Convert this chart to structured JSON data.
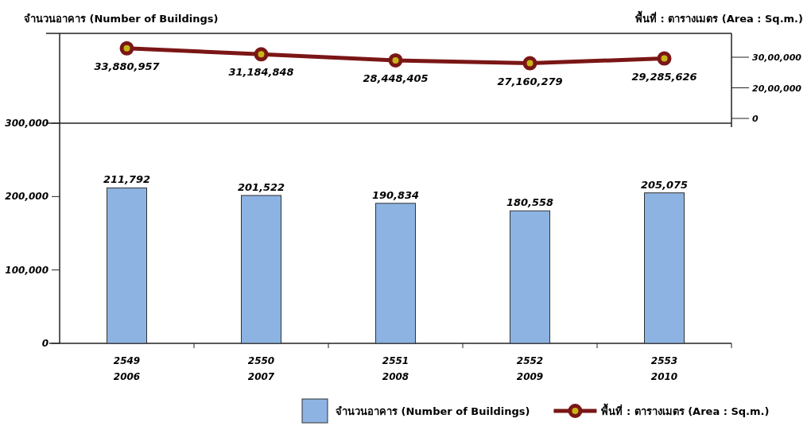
{
  "chart_data": [
    {
      "type": "line",
      "annotations": [
        "พื้นที่ : ตารางเมตร (Area : Sq.m.)",
        "30,00,000",
        "20,00,000",
        "0"
      ],
      "categories": [
        null,
        null,
        null,
        null,
        null
      ],
      "series": [
        {
          "name": "พื้นที่ : ตารางเมตร (Area : Sq.m.)",
          "color": "#7b1616",
          "values": [
            33880957,
            31184848,
            28448405,
            27160279,
            29285626
          ],
          "value_labels": [
            "33,880,957",
            "31,184,848",
            "28,448,405",
            "27,160,279",
            "29,285,626"
          ]
        }
      ],
      "marker": "circle",
      "tick_labels": false,
      "legend": "bottom"
    },
    {
      "type": "bar",
      "annotations": [
        "จำนวนอาคาร (Number of Buildings)"
      ],
      "categories": [
        "2549\n2006",
        "2550\n2007",
        "2551\n2008",
        "2552\n2009",
        "2553\n2010"
      ],
      "series": [
        {
          "name": "จำนวนอาคาร (Number of Buildings)",
          "color": "#8db3e2",
          "values": [
            211792,
            201522,
            190834,
            180558,
            205075
          ],
          "value_labels": [
            "211,792",
            "201,522",
            "190,834",
            "180,558",
            "205,075"
          ]
        }
      ],
      "ylim": [
        0,
        300000
      ],
      "yticks": [
        {
          "value": 0,
          "label": "0"
        },
        {
          "value": 100000,
          "label": "100,000"
        },
        {
          "value": 200000,
          "label": "200,000"
        },
        {
          "value": 300000,
          "label": "300,000"
        }
      ],
      "grid": false,
      "legend": "bottom"
    }
  ]
}
